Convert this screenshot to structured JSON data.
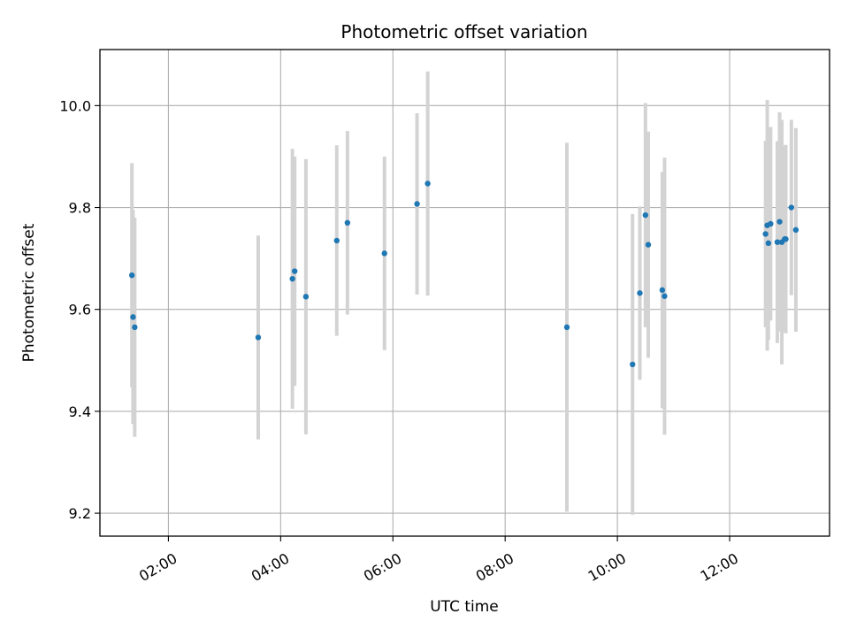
{
  "chart_data": {
    "type": "scatter",
    "title": "Photometric offset variation",
    "xlabel": "UTC time",
    "ylabel": "Photometric offset",
    "x_unit": "hours UTC",
    "xlim": [
      0.78,
      13.78
    ],
    "ylim": [
      9.155,
      10.11
    ],
    "x_ticks": [
      {
        "value": 2,
        "label": "02:00"
      },
      {
        "value": 4,
        "label": "04:00"
      },
      {
        "value": 6,
        "label": "06:00"
      },
      {
        "value": 8,
        "label": "08:00"
      },
      {
        "value": 10,
        "label": "10:00"
      },
      {
        "value": 12,
        "label": "12:00"
      }
    ],
    "y_ticks": [
      {
        "value": 9.2,
        "label": "9.2"
      },
      {
        "value": 9.4,
        "label": "9.4"
      },
      {
        "value": 9.6,
        "label": "9.6"
      },
      {
        "value": 9.8,
        "label": "9.8"
      },
      {
        "value": 10.0,
        "label": "10.0"
      }
    ],
    "grid": true,
    "marker_color": "#1f77b4",
    "errorbar_color": "#d3d3d3",
    "points": [
      {
        "x": 1.35,
        "y": 9.667,
        "err": 0.22
      },
      {
        "x": 1.37,
        "y": 9.585,
        "err": 0.21
      },
      {
        "x": 1.4,
        "y": 9.565,
        "err": 0.215
      },
      {
        "x": 3.6,
        "y": 9.545,
        "err": 0.2
      },
      {
        "x": 4.21,
        "y": 9.66,
        "err": 0.255
      },
      {
        "x": 4.25,
        "y": 9.675,
        "err": 0.225
      },
      {
        "x": 4.45,
        "y": 9.625,
        "err": 0.27
      },
      {
        "x": 5.0,
        "y": 9.735,
        "err": 0.187
      },
      {
        "x": 5.19,
        "y": 9.77,
        "err": 0.18
      },
      {
        "x": 5.85,
        "y": 9.71,
        "err": 0.19
      },
      {
        "x": 6.43,
        "y": 9.807,
        "err": 0.178
      },
      {
        "x": 6.62,
        "y": 9.847,
        "err": 0.22
      },
      {
        "x": 9.1,
        "y": 9.565,
        "err": 0.362
      },
      {
        "x": 10.27,
        "y": 9.492,
        "err": 0.295
      },
      {
        "x": 10.4,
        "y": 9.632,
        "err": 0.17
      },
      {
        "x": 10.5,
        "y": 9.785,
        "err": 0.22
      },
      {
        "x": 10.55,
        "y": 9.727,
        "err": 0.222
      },
      {
        "x": 10.8,
        "y": 9.638,
        "err": 0.232
      },
      {
        "x": 10.84,
        "y": 9.626,
        "err": 0.272
      },
      {
        "x": 12.64,
        "y": 9.748,
        "err": 0.183
      },
      {
        "x": 12.67,
        "y": 9.765,
        "err": 0.246
      },
      {
        "x": 12.69,
        "y": 9.73,
        "err": 0.19
      },
      {
        "x": 12.73,
        "y": 9.768,
        "err": 0.19
      },
      {
        "x": 12.85,
        "y": 9.732,
        "err": 0.198
      },
      {
        "x": 12.89,
        "y": 9.772,
        "err": 0.215
      },
      {
        "x": 12.93,
        "y": 9.732,
        "err": 0.24
      },
      {
        "x": 12.98,
        "y": 9.738,
        "err": 0.182
      },
      {
        "x": 13.0,
        "y": 9.738,
        "err": 0.185
      },
      {
        "x": 13.1,
        "y": 9.8,
        "err": 0.172
      },
      {
        "x": 13.18,
        "y": 9.756,
        "err": 0.2
      }
    ]
  }
}
